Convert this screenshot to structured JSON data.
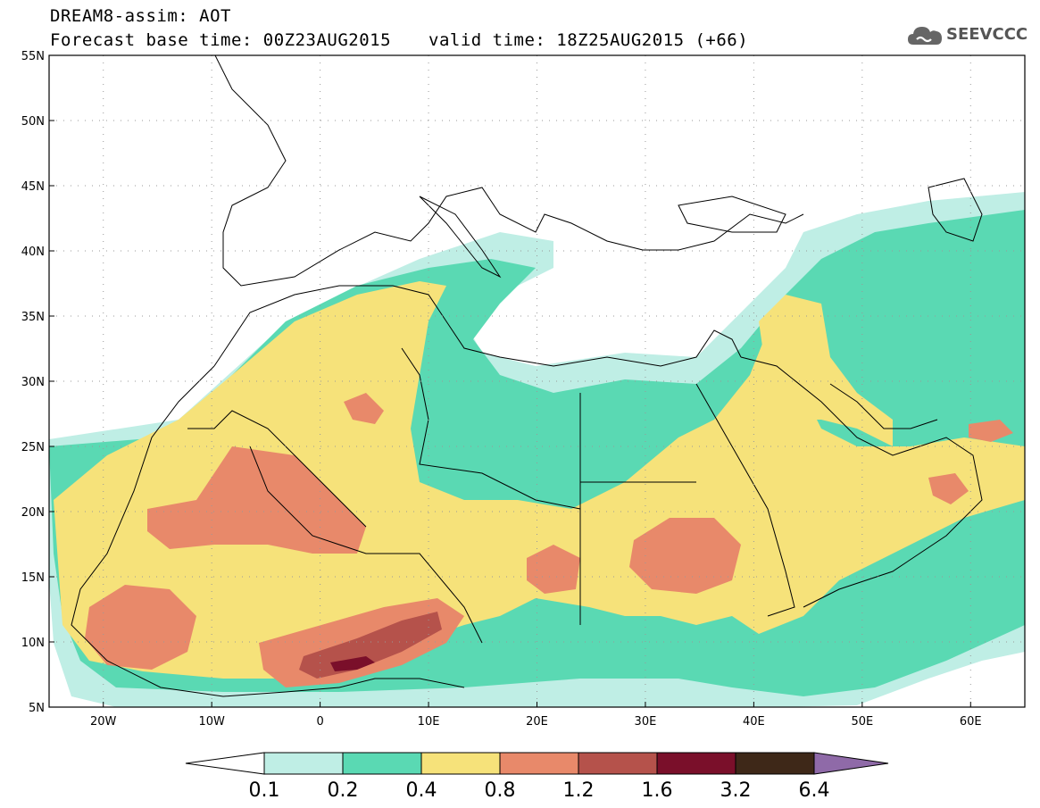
{
  "header": {
    "line1": "DREAM8-assim: AOT",
    "line2": "Forecast base time: 00Z23AUG2015",
    "valid": "valid time: 18Z25AUG2015 (+66)",
    "logo_text": "SEEVCCC"
  },
  "map": {
    "lat_labels": [
      "55N",
      "50N",
      "45N",
      "40N",
      "35N",
      "30N",
      "25N",
      "20N",
      "15N",
      "10N",
      "5N"
    ],
    "lon_labels": [
      "20W",
      "10W",
      "0",
      "10E",
      "20E",
      "30E",
      "40E",
      "50E",
      "60E"
    ],
    "lat_range": [
      5,
      55
    ],
    "lon_range": [
      -25,
      65
    ]
  },
  "colorbar": {
    "labels": [
      "0.1",
      "0.2",
      "0.4",
      "0.8",
      "1.2",
      "1.6",
      "3.2",
      "6.4"
    ],
    "colors": [
      "#bfeee5",
      "#5ad9b3",
      "#f6e27a",
      "#e8896a",
      "#b5524b",
      "#7a0f2a",
      "#3e2818",
      "#8f6aa8"
    ]
  },
  "legend_colors": {
    "low_arrow": "#ffffff",
    "high_arrow": "#8f6aa8"
  }
}
